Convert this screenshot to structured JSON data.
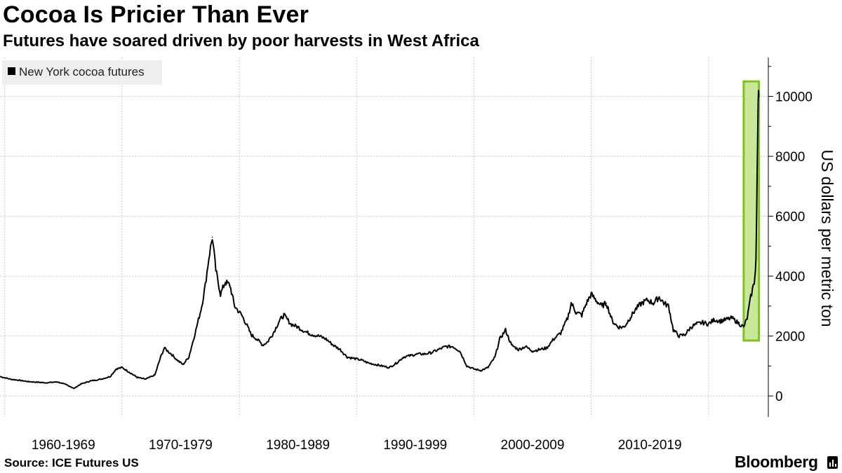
{
  "header": {
    "title": "Cocoa Is Pricier Than Ever",
    "subtitle": "Futures have soared driven by poor harvests in West Africa"
  },
  "footer": {
    "source": "Source: ICE Futures US",
    "brand": "Bloomberg"
  },
  "colors": {
    "line": "#000000",
    "highlight_fill": "#c9e89a",
    "highlight_stroke": "#7dc21e",
    "grid": "#c8c8c8",
    "legend_bg": "#eeeeee"
  },
  "chart_data": {
    "type": "line",
    "title": "Cocoa Is Pricier Than Ever",
    "subtitle": "Futures have soared driven by poor harvests in West Africa",
    "ylabel": "US dollars per metric ton",
    "xlabel": "",
    "ylim": [
      -700,
      11300
    ],
    "xlim": [
      1959.6,
      2025.1
    ],
    "yticks": [
      0,
      2000,
      4000,
      6000,
      8000,
      10000
    ],
    "ytick_labels": [
      "0",
      "2000",
      "4000",
      "6000",
      "8000",
      "10000"
    ],
    "xtick_labels": [
      "1960-1969",
      "1970-1979",
      "1980-1989",
      "1990-1999",
      "2000-2009",
      "2010-2019"
    ],
    "legend": [
      "New York cocoa futures"
    ],
    "legend_position": "top-left",
    "grid": true,
    "annotation": "highlighted surge 2023-2024",
    "highlight": {
      "x": [
        2023.0,
        2024.3
      ],
      "y": [
        1850,
        10500
      ]
    },
    "series": [
      {
        "name": "New York cocoa futures",
        "x": [
          1959.6,
          1960.5,
          1961.3,
          1962.0,
          1962.8,
          1963.5,
          1964.5,
          1965.3,
          1965.9,
          1966.5,
          1967.3,
          1968.2,
          1969.0,
          1969.5,
          1970.0,
          1970.6,
          1971.3,
          1972.0,
          1972.8,
          1973.3,
          1973.6,
          1974.2,
          1974.7,
          1975.2,
          1975.7,
          1976.3,
          1976.8,
          1977.1,
          1977.4,
          1977.7,
          1978.0,
          1978.4,
          1978.8,
          1979.2,
          1979.6,
          1980.2,
          1980.6,
          1981.0,
          1981.5,
          1982.0,
          1982.4,
          1982.9,
          1983.4,
          1983.8,
          1984.4,
          1985.0,
          1985.6,
          1986.2,
          1986.8,
          1987.4,
          1988.0,
          1988.6,
          1989.2,
          1989.8,
          1990.4,
          1991.0,
          1991.6,
          1992.2,
          1992.8,
          1993.4,
          1994.0,
          1994.6,
          1995.2,
          1995.8,
          1996.4,
          1997.0,
          1997.6,
          1998.2,
          1998.8,
          1999.4,
          2000.0,
          2000.6,
          2001.2,
          2001.8,
          2002.2,
          2002.7,
          2003.2,
          2003.8,
          2004.4,
          2005.0,
          2005.6,
          2006.2,
          2006.8,
          2007.4,
          2008.0,
          2008.3,
          2008.7,
          2009.2,
          2009.6,
          2010.0,
          2010.4,
          2010.9,
          2011.3,
          2011.8,
          2012.3,
          2012.8,
          2013.3,
          2013.8,
          2014.3,
          2014.8,
          2015.3,
          2015.8,
          2016.2,
          2016.6,
          2017.0,
          2017.5,
          2018.0,
          2018.5,
          2019.0,
          2019.5,
          2020.0,
          2020.5,
          2021.0,
          2021.5,
          2022.0,
          2022.5,
          2023.0,
          2023.3,
          2023.6,
          2023.9,
          2024.0,
          2024.05,
          2024.1,
          2024.15,
          2024.2,
          2024.23,
          2024.26,
          2024.29
        ],
        "values": [
          650,
          560,
          520,
          480,
          460,
          440,
          470,
          370,
          250,
          400,
          500,
          560,
          650,
          900,
          950,
          800,
          620,
          560,
          700,
          1300,
          1600,
          1400,
          1200,
          1050,
          1300,
          2200,
          3000,
          3700,
          4600,
          5300,
          4200,
          3400,
          3800,
          3700,
          3000,
          2700,
          2400,
          2050,
          1900,
          1700,
          1800,
          2100,
          2500,
          2700,
          2400,
          2300,
          2150,
          2050,
          2000,
          1900,
          1700,
          1550,
          1300,
          1250,
          1200,
          1100,
          1050,
          1000,
          950,
          1100,
          1300,
          1350,
          1400,
          1400,
          1450,
          1550,
          1650,
          1650,
          1500,
          1000,
          900,
          850,
          950,
          1300,
          1900,
          2200,
          1700,
          1550,
          1650,
          1500,
          1550,
          1600,
          1900,
          2100,
          2600,
          3100,
          2800,
          2700,
          3100,
          3400,
          3200,
          3000,
          3100,
          2500,
          2300,
          2300,
          2600,
          2900,
          3100,
          3200,
          3100,
          3300,
          3100,
          3000,
          2200,
          2000,
          2050,
          2300,
          2400,
          2450,
          2400,
          2550,
          2500,
          2550,
          2600,
          2450,
          2300,
          2600,
          3300,
          3800,
          4200,
          4600,
          6000,
          7500,
          9000,
          9800,
          10200,
          10000
        ]
      }
    ]
  }
}
